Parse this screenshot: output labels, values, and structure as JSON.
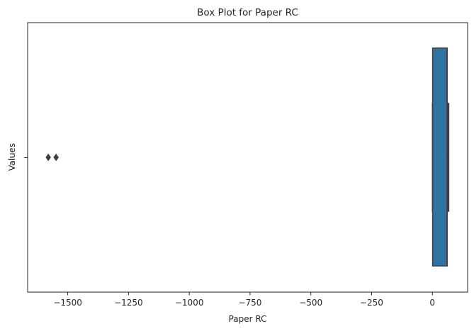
{
  "chart_data": {
    "type": "box",
    "title": "Box Plot for Paper RC",
    "xlabel": "Paper RC",
    "ylabel": "Values",
    "orientation": "horizontal",
    "xlim": [
      -1665,
      145
    ],
    "xticks": [
      -1500,
      -1250,
      -1000,
      -750,
      -500,
      -250,
      0
    ],
    "xtick_labels": [
      "−1500",
      "−1250",
      "−1000",
      "−750",
      "−500",
      "−250",
      "0"
    ],
    "ytick_labels": [
      ""
    ],
    "grid": false,
    "box": {
      "whisker_low": 0,
      "q1": 1,
      "median": 60,
      "q3": 61,
      "whisker_high": 66,
      "color": "#3274a1",
      "edge_color": "#3f3f3f"
    },
    "outliers": [
      -1580,
      -1548
    ]
  }
}
